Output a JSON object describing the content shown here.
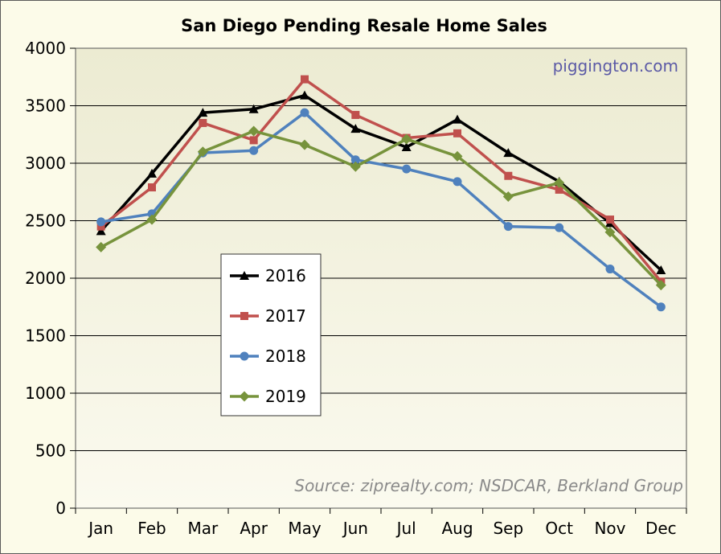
{
  "chart_data": {
    "type": "line",
    "title": "San Diego Pending Resale Home Sales",
    "watermark": "piggington.com",
    "source": "Source: ziprealty.com; NSDCAR, Berkland Group",
    "categories": [
      "Jan",
      "Feb",
      "Mar",
      "Apr",
      "May",
      "Jun",
      "Jul",
      "Aug",
      "Sep",
      "Oct",
      "Nov",
      "Dec"
    ],
    "ylim": [
      0,
      4000
    ],
    "yticks": [
      0,
      500,
      1000,
      1500,
      2000,
      2500,
      3000,
      3500,
      4000
    ],
    "grid": true,
    "legend_position": "center-left",
    "series": [
      {
        "name": "2016",
        "color": "#000000",
        "marker": "triangle",
        "values": [
          2410,
          2910,
          3440,
          3470,
          3590,
          3300,
          3140,
          3380,
          3090,
          2840,
          2480,
          2070
        ]
      },
      {
        "name": "2017",
        "color": "#c0504d",
        "marker": "square",
        "values": [
          2450,
          2790,
          3350,
          3200,
          3730,
          3420,
          3220,
          3260,
          2890,
          2770,
          2510,
          1970
        ]
      },
      {
        "name": "2018",
        "color": "#4f81bd",
        "marker": "circle",
        "values": [
          2490,
          2560,
          3090,
          3110,
          3440,
          3030,
          2950,
          2840,
          2450,
          2440,
          2080,
          1750
        ]
      },
      {
        "name": "2019",
        "color": "#77933c",
        "marker": "diamond",
        "values": [
          2270,
          2510,
          3100,
          3280,
          3160,
          2970,
          3210,
          3060,
          2710,
          2830,
          2400,
          1940
        ]
      }
    ]
  }
}
